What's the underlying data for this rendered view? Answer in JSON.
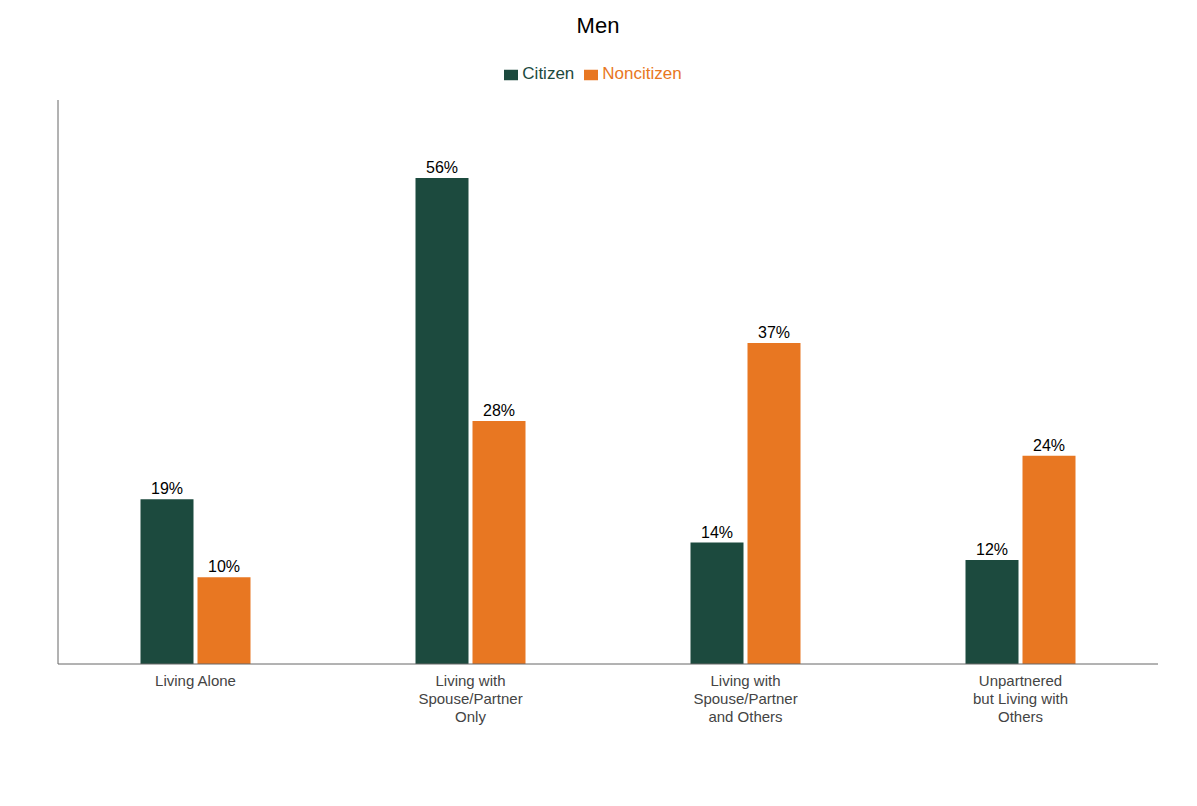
{
  "chart_data": {
    "type": "bar",
    "title": "Men",
    "categories": [
      "Living Alone",
      "Living with\nSpouse/Partner\nOnly",
      "Living with\nSpouse/Partner\nand Others",
      "Unpartnered\nbut Living with\nOthers"
    ],
    "series": [
      {
        "name": "Citizen",
        "color": "#1C4A3E",
        "values": [
          19,
          56,
          14,
          12
        ],
        "value_labels": [
          "19%",
          "56%",
          "14%",
          "12%"
        ]
      },
      {
        "name": "Noncitizen",
        "color": "#E87722",
        "values": [
          10,
          28,
          37,
          24
        ],
        "value_labels": [
          "10%",
          "28%",
          "37%",
          "24%"
        ]
      }
    ],
    "ylim": [
      0,
      65
    ],
    "data_labels": true,
    "tick_labels": "x",
    "grid": false,
    "legend": "top"
  }
}
